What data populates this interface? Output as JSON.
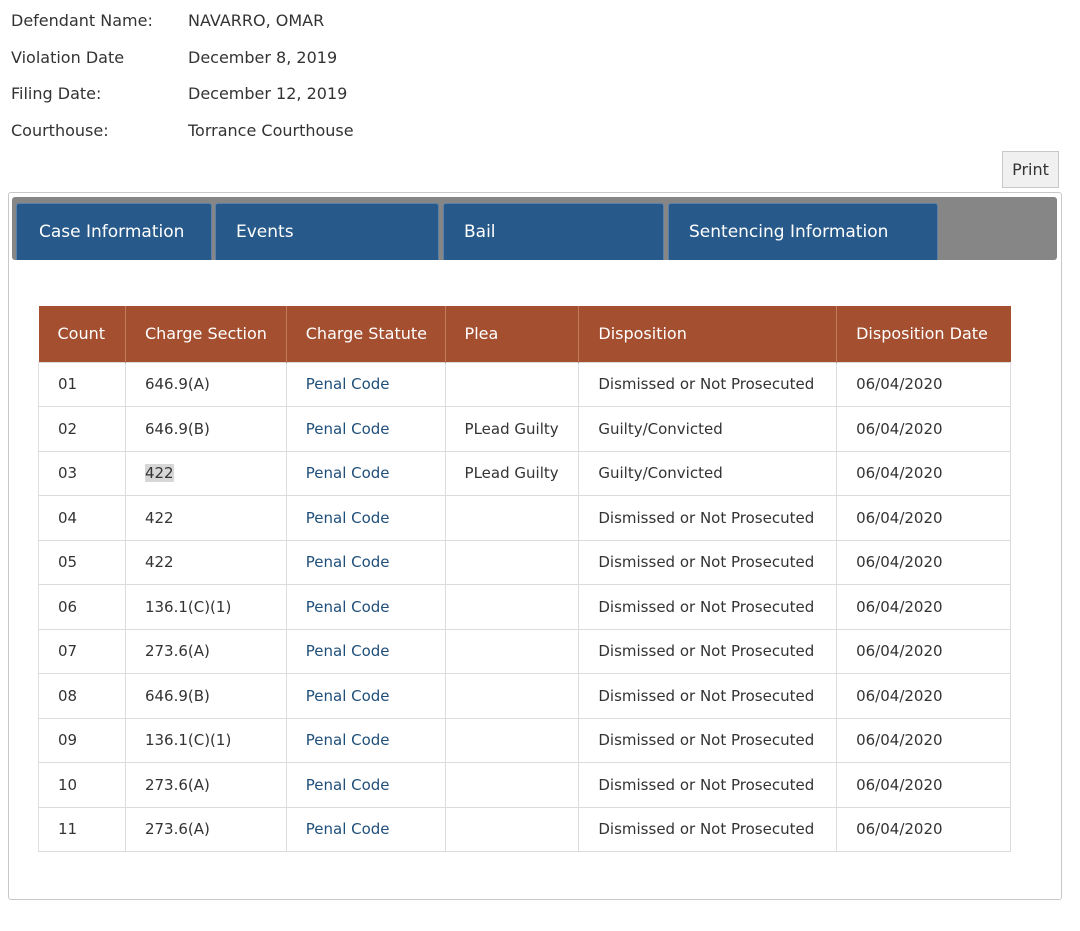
{
  "header": {
    "fields": [
      {
        "label": "Defendant Name:",
        "value": "NAVARRO, OMAR"
      },
      {
        "label": "Violation Date",
        "value": "December 8, 2019"
      },
      {
        "label": "Filing Date:",
        "value": "December 12, 2019"
      },
      {
        "label": "Courthouse:",
        "value": "Torrance Courthouse"
      }
    ]
  },
  "print_label": "Print",
  "tabs": [
    {
      "label": "Case Information",
      "active": true
    },
    {
      "label": "Events"
    },
    {
      "label": "Bail"
    },
    {
      "label": "Sentencing Information"
    }
  ],
  "colors": {
    "tab_bg": "#27598a",
    "tab_bar_bg": "#868686",
    "table_header_bg": "#a34f30",
    "link": "#1f4e79"
  },
  "table": {
    "columns": [
      "Count",
      "Charge Section",
      "Charge Statute",
      "Plea",
      "Disposition",
      "Disposition Date"
    ],
    "rows": [
      {
        "count": "01",
        "section": "646.9(A)",
        "statute": "Penal Code",
        "plea": "",
        "disposition": "Dismissed or Not Prosecuted",
        "date": "06/04/2020"
      },
      {
        "count": "02",
        "section": "646.9(B)",
        "statute": "Penal Code",
        "plea": "PLead Guilty",
        "disposition": "Guilty/Convicted",
        "date": "06/04/2020"
      },
      {
        "count": "03",
        "section": "422",
        "statute": "Penal Code",
        "plea": "PLead Guilty",
        "disposition": "Guilty/Convicted",
        "date": "06/04/2020"
      },
      {
        "count": "04",
        "section": "422",
        "statute": "Penal Code",
        "plea": "",
        "disposition": "Dismissed or Not Prosecuted",
        "date": "06/04/2020"
      },
      {
        "count": "05",
        "section": "422",
        "statute": "Penal Code",
        "plea": "",
        "disposition": "Dismissed or Not Prosecuted",
        "date": "06/04/2020"
      },
      {
        "count": "06",
        "section": "136.1(C)(1)",
        "statute": "Penal Code",
        "plea": "",
        "disposition": "Dismissed or Not Prosecuted",
        "date": "06/04/2020"
      },
      {
        "count": "07",
        "section": "273.6(A)",
        "statute": "Penal Code",
        "plea": "",
        "disposition": "Dismissed or Not Prosecuted",
        "date": "06/04/2020"
      },
      {
        "count": "08",
        "section": "646.9(B)",
        "statute": "Penal Code",
        "plea": "",
        "disposition": "Dismissed or Not Prosecuted",
        "date": "06/04/2020"
      },
      {
        "count": "09",
        "section": "136.1(C)(1)",
        "statute": "Penal Code",
        "plea": "",
        "disposition": "Dismissed or Not Prosecuted",
        "date": "06/04/2020"
      },
      {
        "count": "10",
        "section": "273.6(A)",
        "statute": "Penal Code",
        "plea": "",
        "disposition": "Dismissed or Not Prosecuted",
        "date": "06/04/2020"
      },
      {
        "count": "11",
        "section": "273.6(A)",
        "statute": "Penal Code",
        "plea": "",
        "disposition": "Dismissed or Not Prosecuted",
        "date": "06/04/2020"
      }
    ]
  }
}
